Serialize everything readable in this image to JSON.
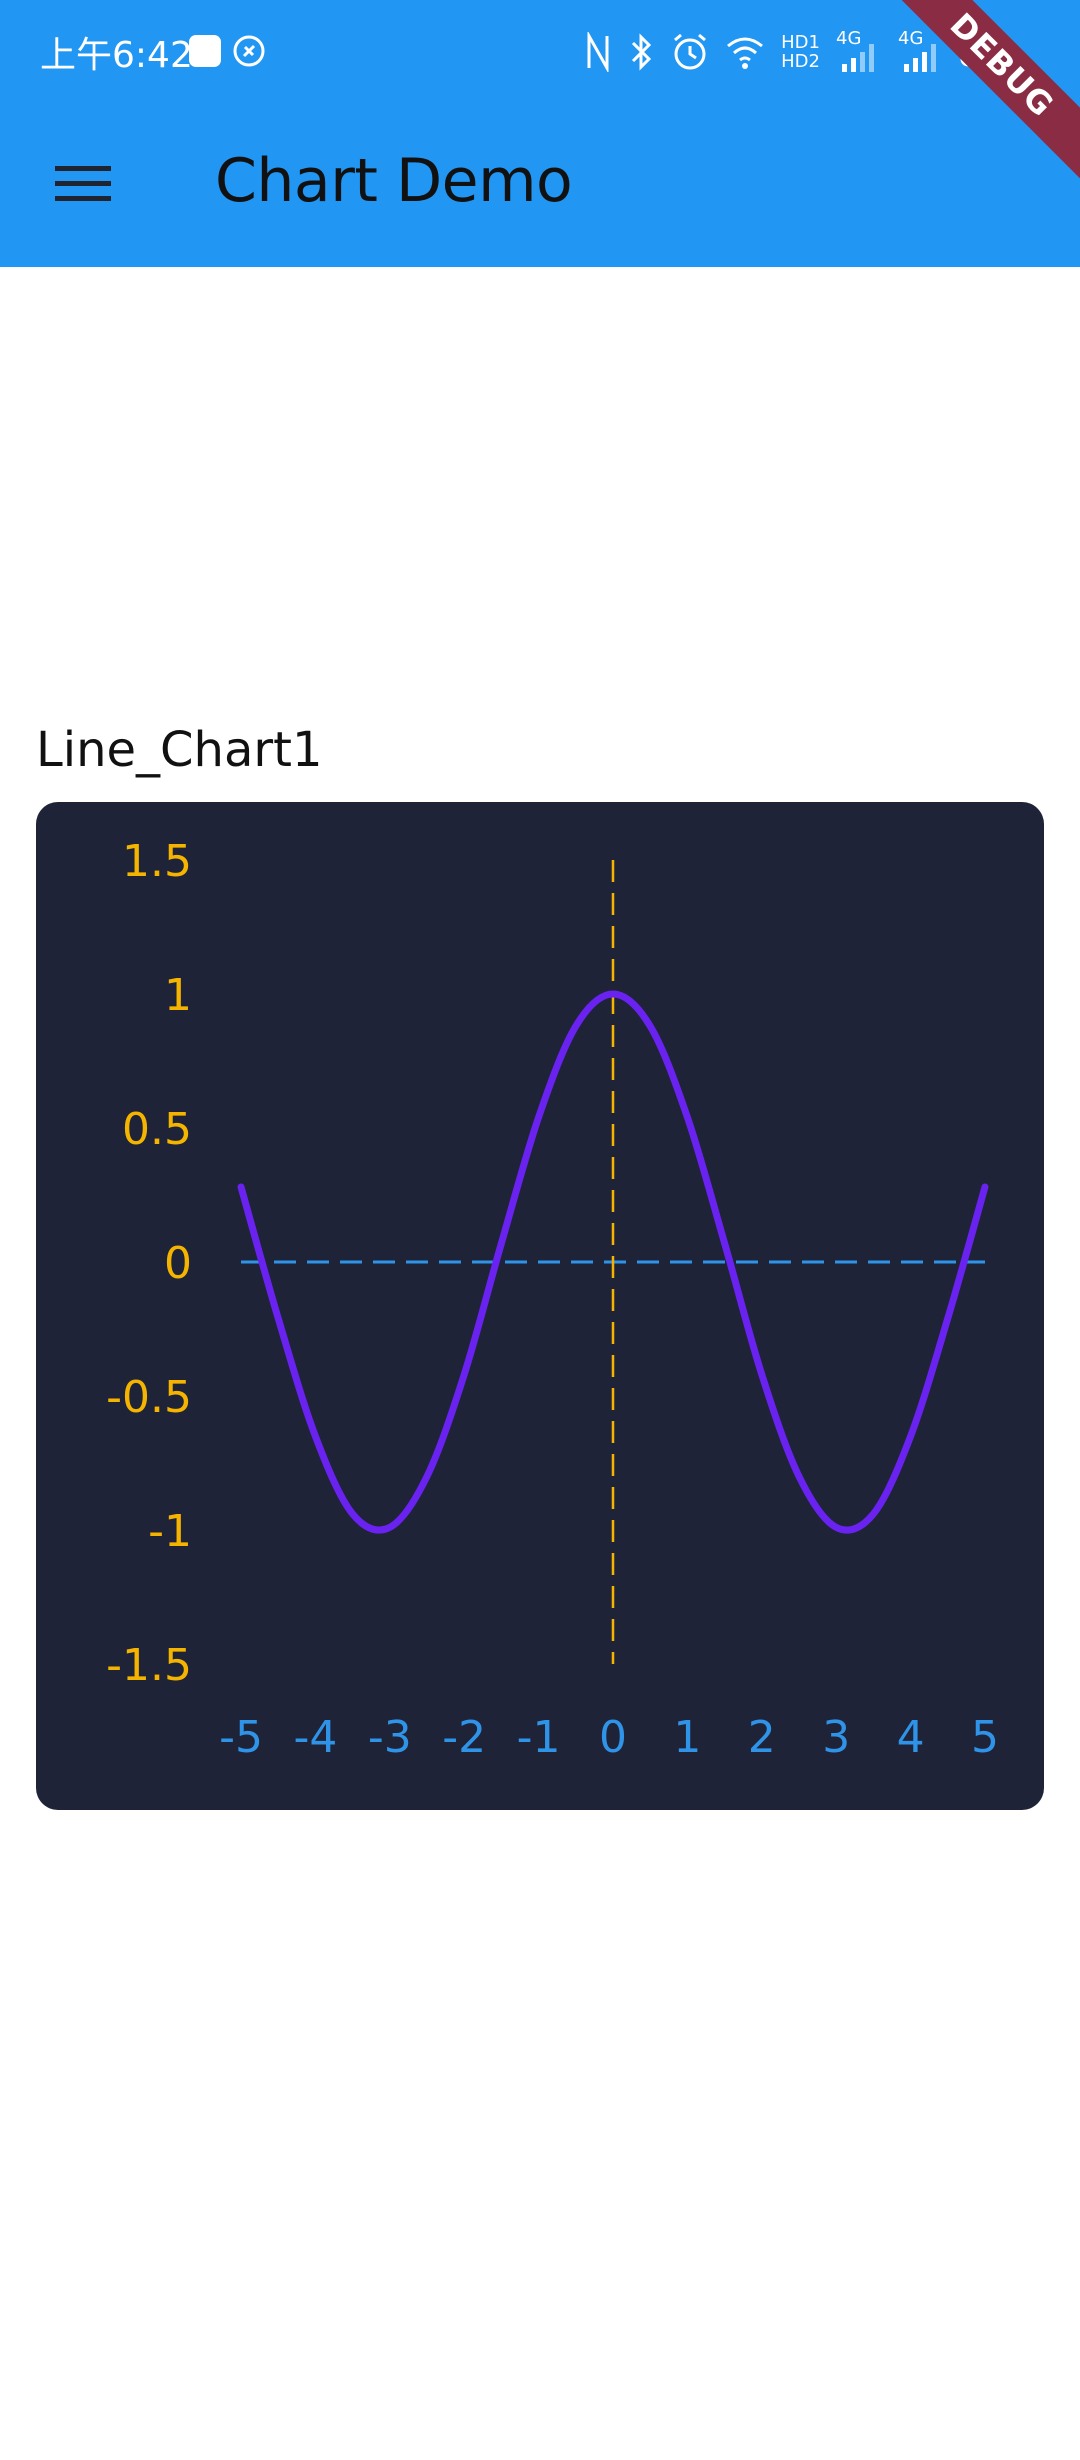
{
  "status_bar": {
    "time": "上午6:42",
    "network_labels": [
      "HD1",
      "HD2",
      "4G",
      "4G"
    ]
  },
  "app_bar": {
    "title": "Chart Demo",
    "menu_icon": "hamburger-menu-icon",
    "debug_banner": "DEBUG",
    "color": "#2196f3"
  },
  "chart": {
    "label": "Line_Chart1",
    "background": "#1e2338"
  },
  "chart_data": {
    "type": "line",
    "title": "Line_Chart1",
    "xlabel": "",
    "ylabel": "",
    "xlim": [
      -5,
      5
    ],
    "ylim": [
      -1.5,
      1.5
    ],
    "x_ticks": [
      "-5",
      "-4",
      "-3",
      "-2",
      "-1",
      "0",
      "1",
      "2",
      "3",
      "4",
      "5"
    ],
    "y_ticks": [
      "1.5",
      "1",
      "0.5",
      "0",
      "-0.5",
      "-1",
      "-1.5"
    ],
    "grid": false,
    "series": [
      {
        "color": "#6a22f0",
        "x": [
          -5,
          -4.5,
          -4,
          -3.5,
          -3,
          -2.5,
          -2,
          -1.5,
          -1,
          -0.5,
          0,
          0.5,
          1,
          1.5,
          2,
          2.5,
          3,
          3.5,
          4,
          4.5,
          5
        ],
        "y": [
          0.28,
          -0.21,
          -0.65,
          -0.94,
          -0.99,
          -0.8,
          -0.42,
          0.07,
          0.54,
          0.88,
          1.0,
          0.88,
          0.54,
          0.07,
          -0.42,
          -0.8,
          -0.99,
          -0.94,
          -0.65,
          -0.21,
          0.28
        ]
      }
    ],
    "reference_lines": [
      {
        "axis": "y",
        "value": 0,
        "style": "dashed",
        "color": "#2f93e8"
      },
      {
        "axis": "x",
        "value": 0,
        "style": "dashed",
        "color": "#f5b400"
      }
    ],
    "y_tick_color": "#f5b400",
    "x_tick_color": "#2f93e8"
  }
}
